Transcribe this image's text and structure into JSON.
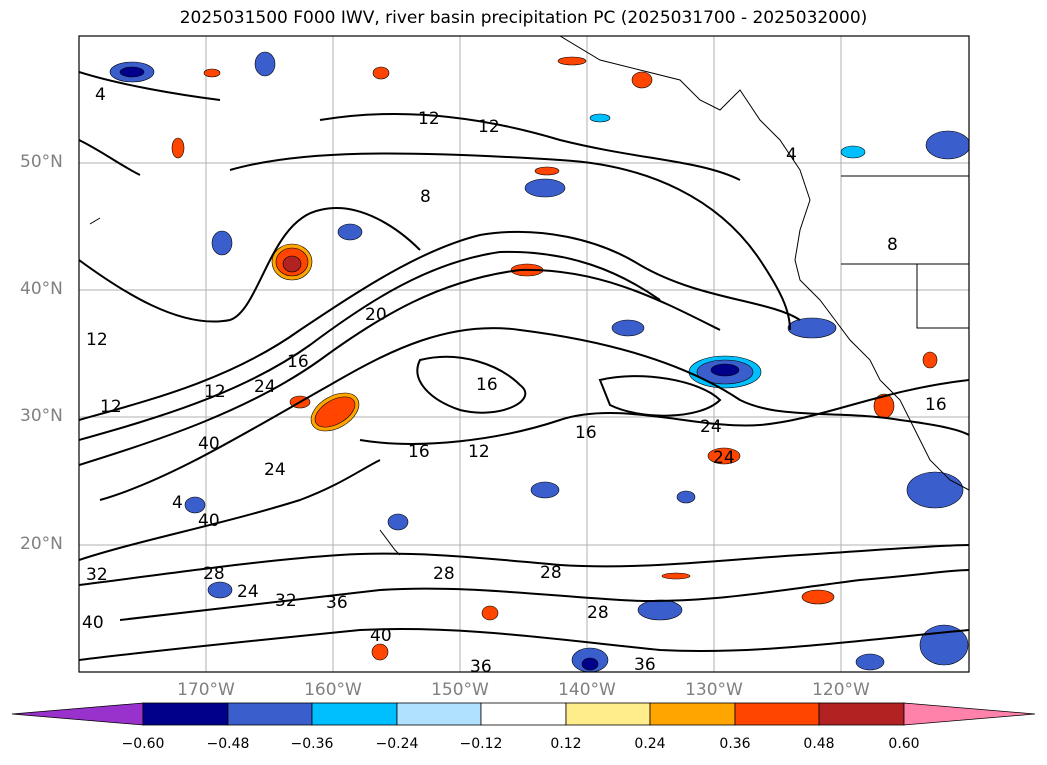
{
  "title": "2025031500 F000 IWV, river basin precipitation PC (2025031700 - 2025032000)",
  "map": {
    "lat_labels": [
      "50°N",
      "40°N",
      "30°N",
      "20°N"
    ],
    "lon_labels": [
      "170°W",
      "160°W",
      "150°W",
      "140°W",
      "130°W",
      "120°W"
    ],
    "contour_labels": [
      "4",
      "12",
      "12",
      "8",
      "12",
      "20",
      "16",
      "12",
      "24",
      "12",
      "16",
      "16",
      "12",
      "16",
      "24",
      "24",
      "40",
      "4",
      "40",
      "24",
      "32",
      "28",
      "24",
      "32",
      "36",
      "28",
      "28",
      "28",
      "40",
      "40",
      "36",
      "36",
      "16",
      "4",
      "8"
    ]
  },
  "colorbar": {
    "ticks": [
      "−0.60",
      "−0.48",
      "−0.36",
      "−0.24",
      "−0.12",
      "0.12",
      "0.24",
      "0.36",
      "0.48",
      "0.60"
    ],
    "colors": [
      "#9932cc",
      "#00008b",
      "#3a5fcd",
      "#00bfff",
      "#b0e2ff",
      "#ffffff",
      "#ffec8b",
      "#ffa500",
      "#ff4500",
      "#b22222",
      "#ff82ab"
    ]
  }
}
